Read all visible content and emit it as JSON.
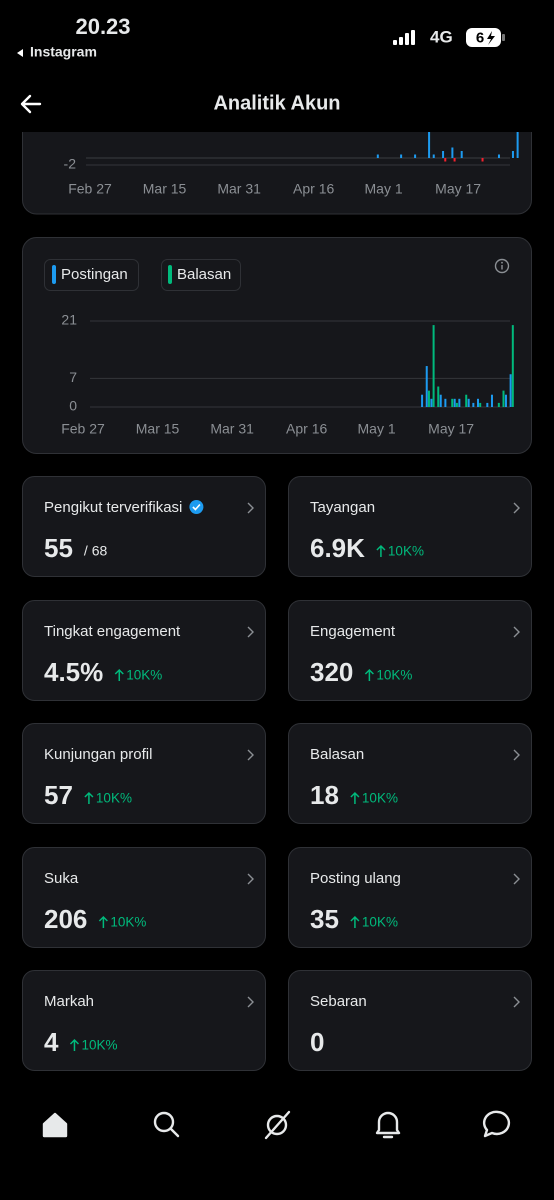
{
  "status_bar": {
    "time": "20.23",
    "back_app": "Instagram",
    "network": "4G",
    "battery": "6"
  },
  "header": {
    "title": "Analitik Akun"
  },
  "chart_data": [
    {
      "type": "bar",
      "categories": [
        "Feb 27",
        null,
        null,
        null,
        null,
        null,
        null,
        null,
        null,
        null,
        null,
        null,
        null,
        null,
        null,
        null,
        "Mar 15",
        null,
        null,
        null,
        null,
        null,
        null,
        null,
        null,
        null,
        null,
        null,
        null,
        null,
        null,
        null,
        "Mar 31",
        null,
        null,
        null,
        null,
        null,
        null,
        null,
        null,
        null,
        null,
        null,
        null,
        null,
        null,
        null,
        "Apr 16",
        null,
        null,
        null,
        null,
        null,
        null,
        null,
        null,
        null,
        null,
        null,
        null,
        null,
        null,
        "May 1",
        null,
        null,
        null,
        null,
        null,
        null,
        null,
        null,
        null,
        null,
        null,
        null,
        null,
        null,
        null,
        "May 17",
        null,
        null,
        null,
        null,
        null,
        null,
        null,
        null,
        null,
        null,
        null,
        null,
        null
      ],
      "series": [
        {
          "color": "#1d9bf0",
          "values": [
            0,
            0,
            0,
            0,
            0,
            0,
            0,
            0,
            0,
            0,
            0,
            0,
            0,
            0,
            0,
            0,
            0,
            0,
            0,
            0,
            0,
            0,
            0,
            0,
            0,
            0,
            0,
            0,
            0,
            0,
            0,
            0,
            0,
            0,
            0,
            0,
            0,
            0,
            0,
            0,
            0,
            0,
            0,
            0,
            0,
            0,
            0,
            0,
            0,
            0,
            0,
            0,
            0,
            0,
            0,
            0,
            0,
            0,
            0,
            0,
            0,
            0,
            1,
            0,
            0,
            0,
            0,
            1,
            0,
            0,
            1,
            0,
            0,
            8,
            1,
            0,
            2,
            0,
            3,
            0,
            2,
            0,
            0,
            0,
            0,
            0,
            0,
            0,
            1,
            0,
            0,
            2,
            8
          ]
        },
        {
          "color": "#f4212e",
          "values": [
            0,
            0,
            0,
            0,
            0,
            0,
            0,
            0,
            0,
            0,
            0,
            0,
            0,
            0,
            0,
            0,
            0,
            0,
            0,
            0,
            0,
            0,
            0,
            0,
            0,
            0,
            0,
            0,
            0,
            0,
            0,
            0,
            0,
            0,
            0,
            0,
            0,
            0,
            0,
            0,
            0,
            0,
            0,
            0,
            0,
            0,
            0,
            0,
            0,
            0,
            0,
            0,
            0,
            0,
            0,
            0,
            0,
            0,
            0,
            0,
            0,
            0,
            0,
            0,
            0,
            0,
            0,
            0,
            0,
            0,
            0,
            0,
            0,
            0,
            0,
            0,
            -1,
            0,
            -1,
            0,
            0,
            0,
            0,
            0,
            -1,
            0,
            0,
            0,
            0,
            0,
            0,
            0,
            0
          ]
        }
      ],
      "ylim": [
        -2,
        8
      ],
      "yticks": [
        -2
      ],
      "grid": true
    },
    {
      "type": "bar",
      "categories": [
        "Feb 27",
        null,
        null,
        null,
        null,
        null,
        null,
        null,
        null,
        null,
        null,
        null,
        null,
        null,
        null,
        null,
        "Mar 15",
        null,
        null,
        null,
        null,
        null,
        null,
        null,
        null,
        null,
        null,
        null,
        null,
        null,
        null,
        null,
        "Mar 31",
        null,
        null,
        null,
        null,
        null,
        null,
        null,
        null,
        null,
        null,
        null,
        null,
        null,
        null,
        null,
        "Apr 16",
        null,
        null,
        null,
        null,
        null,
        null,
        null,
        null,
        null,
        null,
        null,
        null,
        null,
        null,
        "May 1",
        null,
        null,
        null,
        null,
        null,
        null,
        null,
        null,
        null,
        null,
        null,
        null,
        null,
        null,
        null,
        "May 17",
        null,
        null,
        null,
        null,
        null,
        null,
        null,
        null,
        null,
        null,
        null,
        null,
        null
      ],
      "series": [
        {
          "name": "Postingan",
          "color": "#1d9bf0",
          "values": [
            0,
            0,
            0,
            0,
            0,
            0,
            0,
            0,
            0,
            0,
            0,
            0,
            0,
            0,
            0,
            0,
            0,
            0,
            0,
            0,
            0,
            0,
            0,
            0,
            0,
            0,
            0,
            0,
            0,
            0,
            0,
            0,
            0,
            0,
            0,
            0,
            0,
            0,
            0,
            0,
            0,
            0,
            0,
            0,
            0,
            0,
            0,
            0,
            0,
            0,
            0,
            0,
            0,
            0,
            0,
            0,
            0,
            0,
            0,
            0,
            0,
            0,
            0,
            0,
            0,
            0,
            0,
            0,
            0,
            0,
            0,
            0,
            0,
            3,
            10,
            2,
            0,
            3,
            2,
            0,
            2,
            2,
            0,
            2,
            1,
            2,
            0,
            1,
            3,
            0,
            0,
            3,
            8
          ]
        },
        {
          "name": "Balasan",
          "color": "#00ba7c",
          "values": [
            0,
            0,
            0,
            0,
            0,
            0,
            0,
            0,
            0,
            0,
            0,
            0,
            0,
            0,
            0,
            0,
            0,
            0,
            0,
            0,
            0,
            0,
            0,
            0,
            0,
            0,
            0,
            0,
            0,
            0,
            0,
            0,
            0,
            0,
            0,
            0,
            0,
            0,
            0,
            0,
            0,
            0,
            0,
            0,
            0,
            0,
            0,
            0,
            0,
            0,
            0,
            0,
            0,
            0,
            0,
            0,
            0,
            0,
            0,
            0,
            0,
            0,
            0,
            0,
            0,
            0,
            0,
            0,
            0,
            0,
            0,
            0,
            0,
            0,
            4,
            20,
            5,
            0,
            0,
            2,
            1,
            0,
            3,
            0,
            0,
            1,
            0,
            0,
            0,
            1,
            4,
            0,
            20
          ]
        }
      ],
      "ylim": [
        0,
        21
      ],
      "yticks": [
        0,
        7,
        21
      ],
      "grid": true
    }
  ],
  "metrics": [
    {
      "label": "Pengikut terverifikasi",
      "value": "55",
      "total": "/ 68"
    },
    {
      "label": "Tayangan",
      "value": "6.9K",
      "change": "10K%"
    },
    {
      "label": "Tingkat engagement",
      "value": "4.5%",
      "change": "10K%"
    },
    {
      "label": "Engagement",
      "value": "320",
      "change": "10K%"
    },
    {
      "label": "Kunjungan profil",
      "value": "57",
      "change": "10K%"
    },
    {
      "label": "Balasan",
      "value": "18",
      "change": "10K%"
    },
    {
      "label": "Suka",
      "value": "206",
      "change": "10K%"
    },
    {
      "label": "Posting ulang",
      "value": "35",
      "change": "10K%"
    },
    {
      "label": "Markah",
      "value": "4",
      "change": "10K%"
    },
    {
      "label": "Sebaran",
      "value": "0"
    }
  ]
}
